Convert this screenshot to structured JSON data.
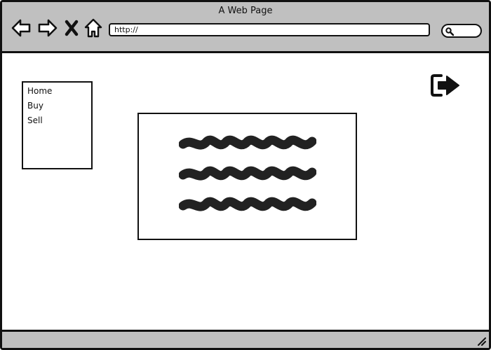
{
  "window": {
    "title": "A Web Page"
  },
  "toolbar": {
    "back_icon": "back-arrow-icon",
    "forward_icon": "forward-arrow-icon",
    "stop_icon": "close-x-icon",
    "home_icon": "home-icon",
    "address": "http://",
    "search_icon": "search-icon"
  },
  "nav_menu": {
    "items": [
      {
        "label": "Home"
      },
      {
        "label": "Buy"
      },
      {
        "label": "Sell"
      }
    ]
  },
  "header": {
    "logout_icon": "sign-out-icon"
  },
  "content": {
    "placeholder_lines": 3
  },
  "colors": {
    "chrome": "#c0c0c0",
    "ink": "#111111",
    "scribble": "#222222",
    "page": "#ffffff"
  }
}
